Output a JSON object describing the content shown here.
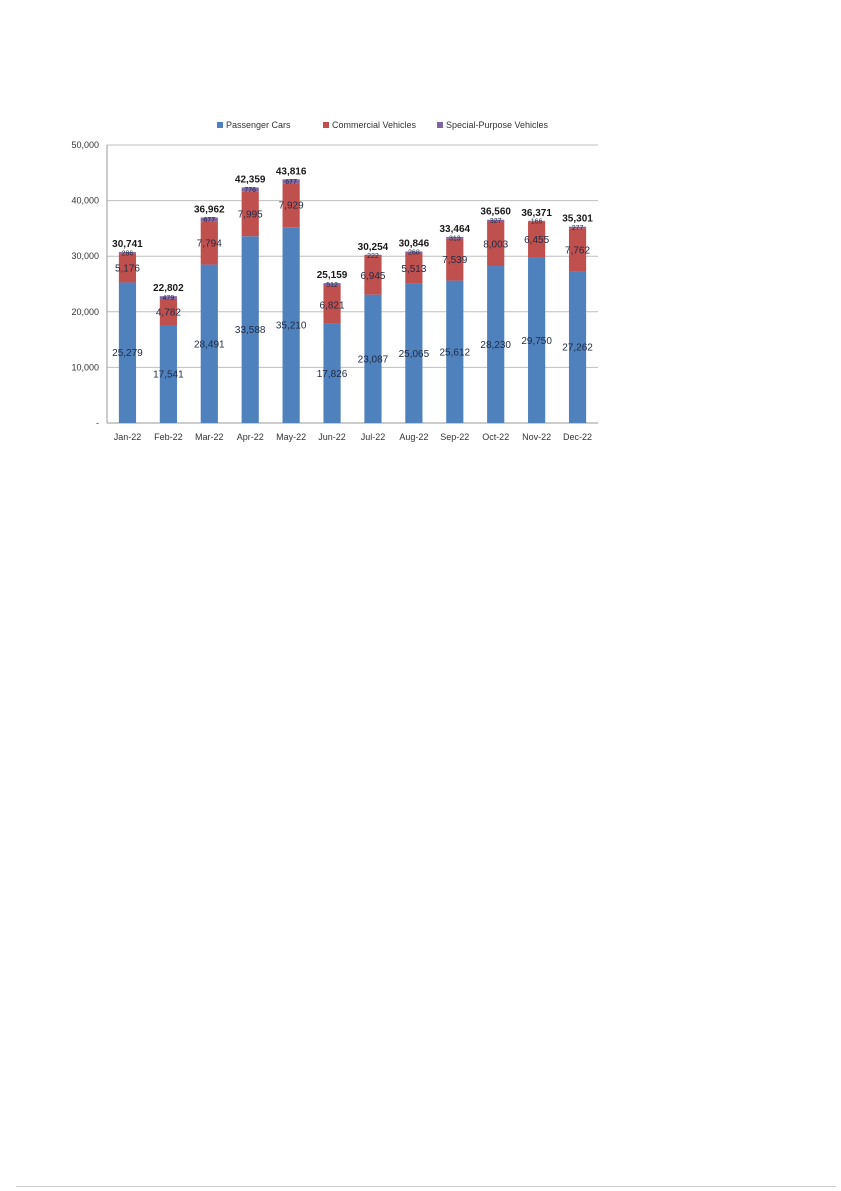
{
  "chart_data": {
    "type": "bar",
    "stacked": true,
    "title": "",
    "xlabel": "",
    "ylabel": "",
    "ylim": [
      0,
      50000
    ],
    "yticks": [
      {
        "value": 0,
        "label": "-"
      },
      {
        "value": 10000,
        "label": "10,000"
      },
      {
        "value": 20000,
        "label": "20,000"
      },
      {
        "value": 30000,
        "label": "30,000"
      },
      {
        "value": 40000,
        "label": "40,000"
      },
      {
        "value": 50000,
        "label": "50,000"
      }
    ],
    "grid": true,
    "legend_position": "top",
    "categories": [
      "Jan-22",
      "Feb-22",
      "Mar-22",
      "Apr-22",
      "May-22",
      "Jun-22",
      "Jul-22",
      "Aug-22",
      "Sep-22",
      "Oct-22",
      "Nov-22",
      "Dec-22"
    ],
    "series": [
      {
        "name": "Passenger Cars",
        "color": "#4f81bd",
        "values": [
          25279,
          17541,
          28491,
          33588,
          35210,
          17826,
          23087,
          25065,
          25612,
          28230,
          29750,
          27262
        ]
      },
      {
        "name": "Commercial Vehicles",
        "color": "#c0504d",
        "values": [
          5176,
          4782,
          7794,
          7995,
          7929,
          6821,
          6945,
          5513,
          7539,
          8003,
          6455,
          7762
        ]
      },
      {
        "name": "Special-Purpose Vehicles",
        "color": "#8064a2",
        "values": [
          286,
          479,
          677,
          776,
          677,
          512,
          222,
          268,
          313,
          327,
          166,
          277
        ]
      }
    ],
    "totals": [
      30741,
      22802,
      36962,
      42359,
      43816,
      25159,
      30254,
      30846,
      33464,
      36560,
      36371,
      35301
    ]
  }
}
